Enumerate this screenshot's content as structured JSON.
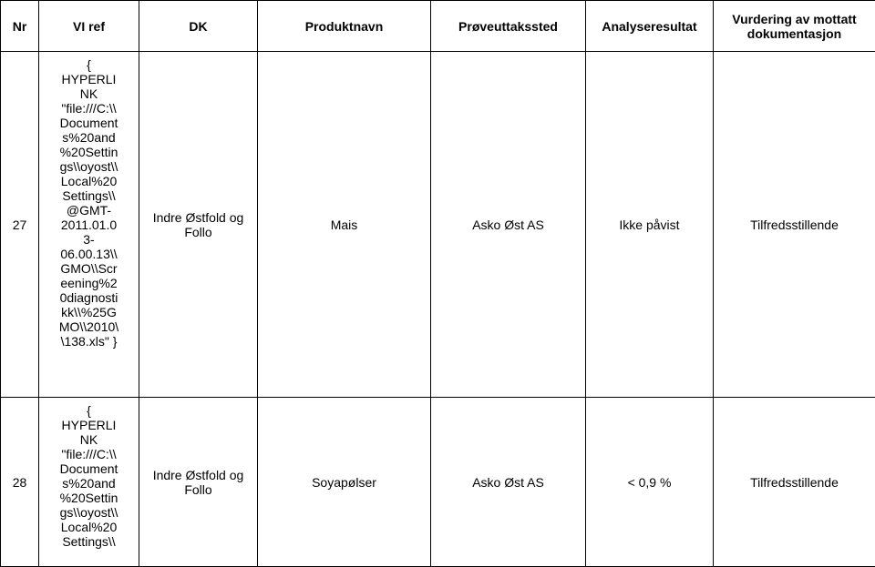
{
  "columns": {
    "nr": "Nr",
    "viref": "VI ref",
    "dk": "DK",
    "produktnavn": "Produktnavn",
    "proveuttakssted": "Prøveuttakssted",
    "analyseresultat": "Analyseresultat",
    "vurdering": "Vurdering av mottatt dokumentasjon"
  },
  "rows": [
    {
      "nr": "27",
      "viref": "{ HYPERLINK \"file:///C:\\\\Documents%20and%20Settings\\\\oyost\\\\Local%20Settings\\\\@GMT-2011.01.03-06.00.13\\\\GMO\\\\Screening%20diagnostikk\\\\%25GMO\\\\2010\\\\138.xls\" }",
      "dk": "Indre Østfold og Follo",
      "produktnavn": "Mais",
      "proveuttakssted": "Asko Øst AS",
      "analyseresultat": "Ikke påvist",
      "vurdering": "Tilfredsstillende"
    },
    {
      "nr": "28",
      "viref": "{ HYPERLINK \"file:///C:\\\\Documents%20and%20Settings\\\\oyost\\\\Local%20Settings\\\\",
      "dk": "Indre Østfold og Follo",
      "produktnavn": "Soyapølser",
      "proveuttakssted": "Asko Øst AS",
      "analyseresultat": "< 0,9 %",
      "vurdering": "Tilfredsstillende"
    }
  ]
}
